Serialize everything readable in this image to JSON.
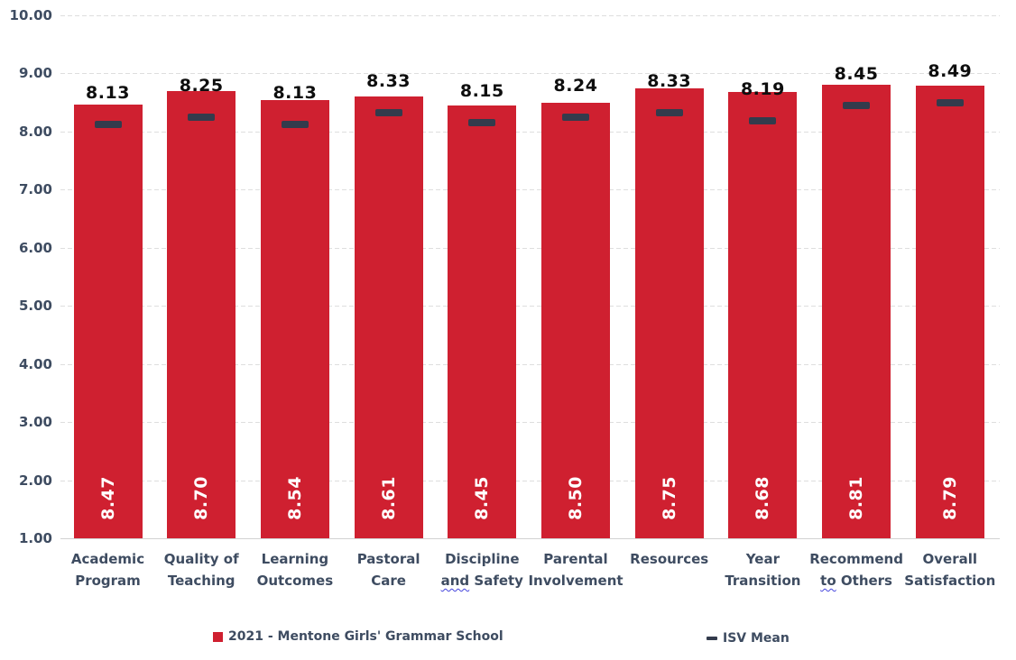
{
  "chart_data": {
    "type": "bar",
    "title": "",
    "xlabel": "",
    "ylabel": "",
    "categories": [
      "Academic Program",
      "Quality of Teaching",
      "Learning Outcomes",
      "Pastoral Care",
      "Discipline and Safety",
      "Parental Involvement",
      "Resources",
      "Year Transition",
      "Recommend to Others",
      "Overall Satisfaction"
    ],
    "category_lines": [
      [
        "Academic",
        "Program"
      ],
      [
        "Quality of",
        "Teaching"
      ],
      [
        "Learning",
        "Outcomes"
      ],
      [
        "Pastoral",
        "Care"
      ],
      [
        "Discipline",
        "and Safety"
      ],
      [
        "Parental",
        "Involvement"
      ],
      [
        "Resources"
      ],
      [
        "Year",
        "Transition"
      ],
      [
        "Recommend",
        "to Others"
      ],
      [
        "Overall",
        "Satisfaction"
      ]
    ],
    "spellcheck_squiggles": [
      {
        "category_index": 4,
        "word": "and"
      },
      {
        "category_index": 8,
        "word": "to"
      }
    ],
    "series": [
      {
        "name": "2021 - Mentone Girls' Grammar School",
        "type": "bar",
        "values": [
          8.47,
          8.7,
          8.54,
          8.61,
          8.45,
          8.5,
          8.75,
          8.68,
          8.81,
          8.79
        ],
        "label_style": "white-rotated-inside-base"
      },
      {
        "name": "ISV Mean",
        "type": "dash-marker",
        "values": [
          8.13,
          8.25,
          8.13,
          8.33,
          8.15,
          8.24,
          8.33,
          8.19,
          8.45,
          8.49
        ],
        "label_style": "black-above-bar"
      }
    ],
    "y_axis": {
      "min": 1,
      "max": 10,
      "step": 1,
      "tick_labels": [
        "1.00",
        "2.00",
        "3.00",
        "4.00",
        "5.00",
        "6.00",
        "7.00",
        "8.00",
        "9.00",
        "10.00"
      ]
    },
    "ylim": [
      1,
      10
    ],
    "grid": "horizontal-dashed",
    "legend_position": "bottom"
  },
  "legend": {
    "items": [
      {
        "label": "2021 - Mentone Girls' Grammar School",
        "marker": "square"
      },
      {
        "label": "ISV Mean",
        "marker": "dash"
      }
    ]
  },
  "colors": {
    "bar": "#CF2030",
    "isv_marker": "#333B4C",
    "axis_text": "#3E4C61",
    "isv_value_label": "#0E0E0E",
    "bar_value_label": "#FFFFFF",
    "gridline": "#DEDEDE",
    "baseline": "#D2D2D2",
    "squiggle": "#4444DD",
    "background": "#FFFFFF"
  }
}
